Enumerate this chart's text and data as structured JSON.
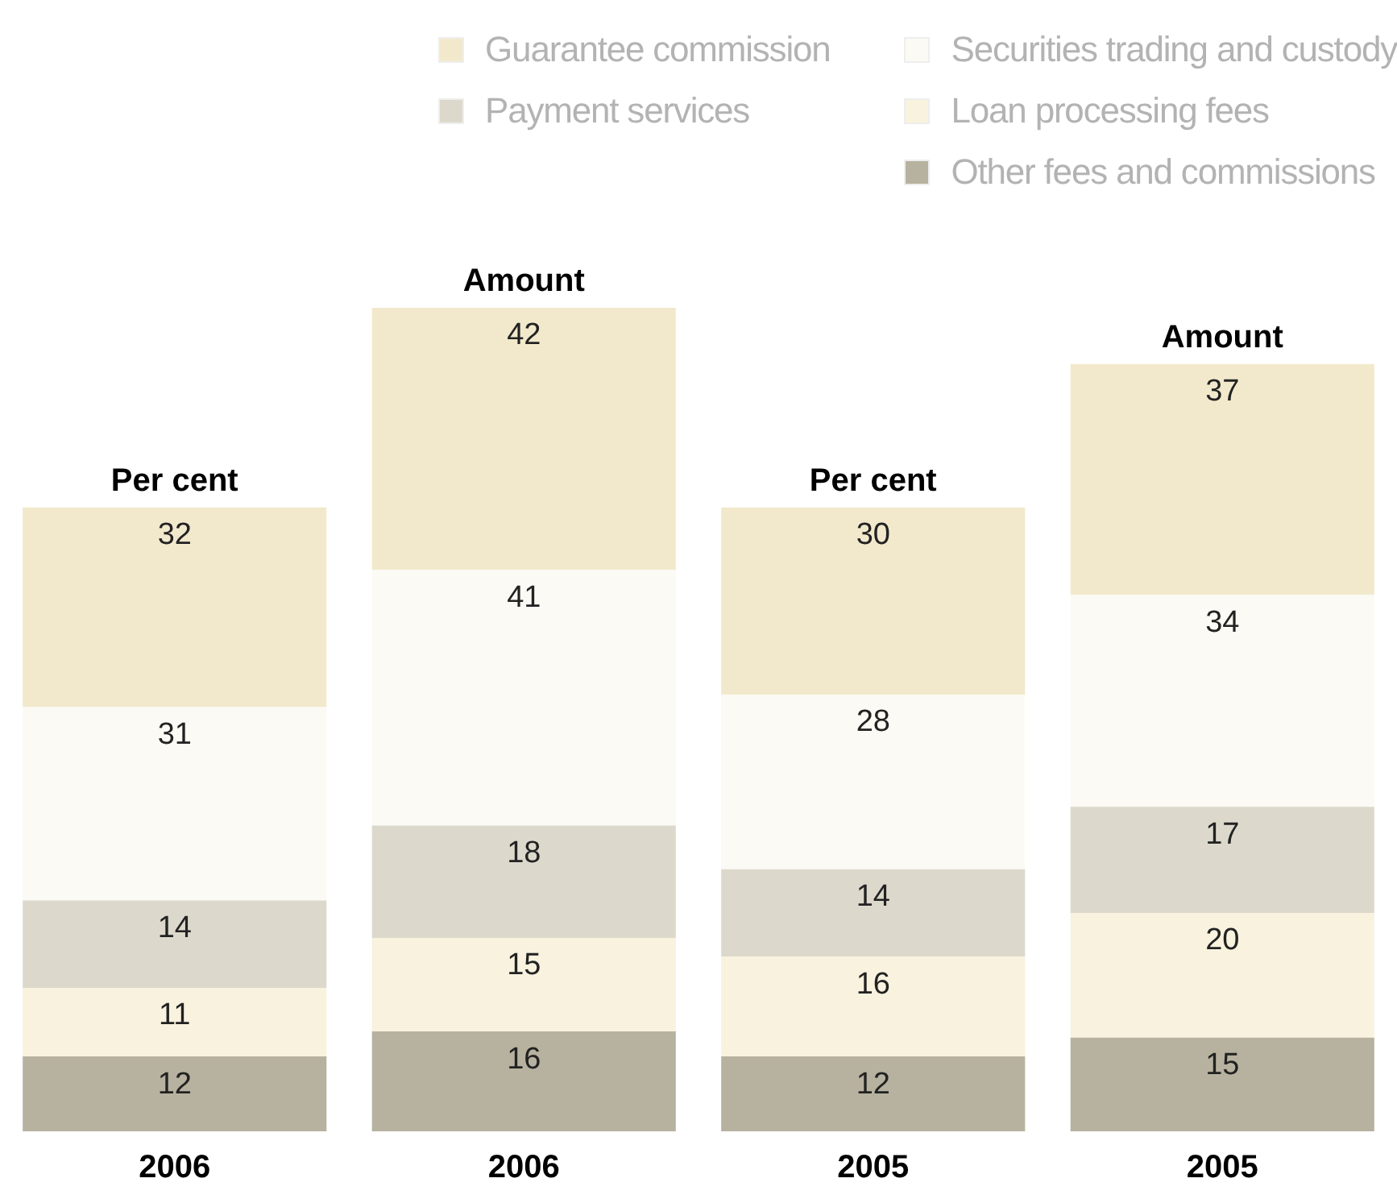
{
  "chart_data": {
    "type": "bar",
    "stacked": true,
    "data_labels": true,
    "legend": "top right",
    "categories": [
      "2006",
      "2006",
      "2005",
      "2005"
    ],
    "annotations": [
      "Per cent",
      "Amount",
      "Per cent",
      "Amount"
    ],
    "series": [
      {
        "name": "Other fees and commissions",
        "color": "#b7b29f",
        "values": [
          12,
          16,
          12,
          15
        ]
      },
      {
        "name": "Loan processing fees",
        "color": "#f8f2de",
        "values": [
          11,
          15,
          16,
          20
        ]
      },
      {
        "name": "Payment services",
        "color": "#dcd9cc",
        "values": [
          14,
          18,
          14,
          17
        ]
      },
      {
        "name": "Securities trading and custody",
        "color": "#fbfaf4",
        "values": [
          31,
          41,
          28,
          34
        ]
      },
      {
        "name": "Guarantee commission",
        "color": "#f2e9cc",
        "values": [
          32,
          42,
          30,
          37
        ]
      }
    ]
  }
}
